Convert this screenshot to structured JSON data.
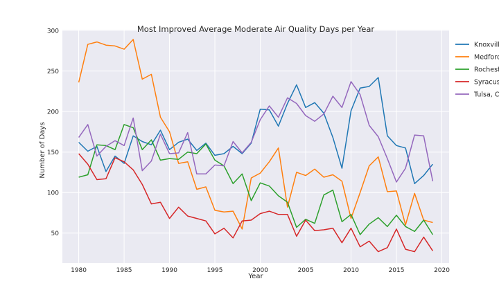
{
  "chart_data": {
    "type": "line",
    "title": "Most Improved Average Moderate Air Quality Days per Year",
    "xlabel": "Year",
    "ylabel": "Number of Days",
    "xlim": [
      1978.2,
      2020.8
    ],
    "ylim": [
      13,
      301
    ],
    "x_ticks": [
      1980,
      1985,
      1990,
      1995,
      2000,
      2005,
      2010,
      2015,
      2020
    ],
    "y_ticks": [
      50,
      100,
      150,
      200,
      250,
      300
    ],
    "grid": true,
    "legend_position": "outside-right",
    "background": "#eaeaf2",
    "x": [
      1980,
      1981,
      1982,
      1983,
      1984,
      1985,
      1986,
      1987,
      1988,
      1989,
      1990,
      1991,
      1992,
      1993,
      1994,
      1995,
      1996,
      1997,
      1998,
      1999,
      2000,
      2001,
      2002,
      2003,
      2004,
      2005,
      2006,
      2007,
      2008,
      2009,
      2010,
      2011,
      2012,
      2013,
      2014,
      2015,
      2016,
      2017,
      2018,
      2019
    ],
    "series": [
      {
        "name": "Knoxvill",
        "color": "#1f77b4",
        "values": [
          162,
          151,
          157,
          126,
          145,
          136,
          170,
          163,
          159,
          177,
          153,
          162,
          166,
          152,
          161,
          146,
          148,
          157,
          148,
          161,
          203,
          202,
          182,
          210,
          233,
          205,
          211,
          198,
          168,
          130,
          201,
          229,
          231,
          242,
          170,
          158,
          155,
          111,
          121,
          135
        ]
      },
      {
        "name": "Medford",
        "color": "#ff7f0e",
        "values": [
          236,
          283,
          286,
          282,
          281,
          277,
          289,
          240,
          246,
          193,
          175,
          136,
          138,
          104,
          107,
          78,
          76,
          77,
          55,
          118,
          124,
          138,
          155,
          82,
          125,
          121,
          129,
          119,
          122,
          114,
          68,
          100,
          133,
          144,
          101,
          102,
          60,
          99,
          66,
          63
        ]
      },
      {
        "name": "Rochest",
        "color": "#2ca02c",
        "values": [
          119,
          122,
          159,
          158,
          153,
          184,
          180,
          153,
          165,
          140,
          142,
          141,
          150,
          148,
          160,
          140,
          133,
          111,
          123,
          90,
          112,
          108,
          96,
          88,
          57,
          67,
          62,
          97,
          103,
          64,
          73,
          48,
          61,
          69,
          58,
          72,
          58,
          52,
          66,
          48
        ]
      },
      {
        "name": "Syracus",
        "color": "#d62728",
        "values": [
          148,
          135,
          116,
          117,
          143,
          138,
          128,
          110,
          86,
          88,
          68,
          82,
          71,
          68,
          65,
          49,
          56,
          44,
          65,
          66,
          74,
          77,
          73,
          73,
          46,
          66,
          53,
          54,
          56,
          38,
          56,
          33,
          40,
          27,
          32,
          55,
          30,
          27,
          45,
          28
        ]
      },
      {
        "name": "Tulsa, C",
        "color": "#9467bd",
        "values": [
          168,
          184,
          145,
          157,
          164,
          158,
          192,
          127,
          139,
          172,
          148,
          149,
          174,
          123,
          123,
          134,
          133,
          163,
          149,
          162,
          190,
          207,
          193,
          217,
          210,
          195,
          188,
          197,
          219,
          205,
          237,
          221,
          183,
          169,
          142,
          113,
          130,
          171,
          170,
          114
        ]
      }
    ]
  }
}
